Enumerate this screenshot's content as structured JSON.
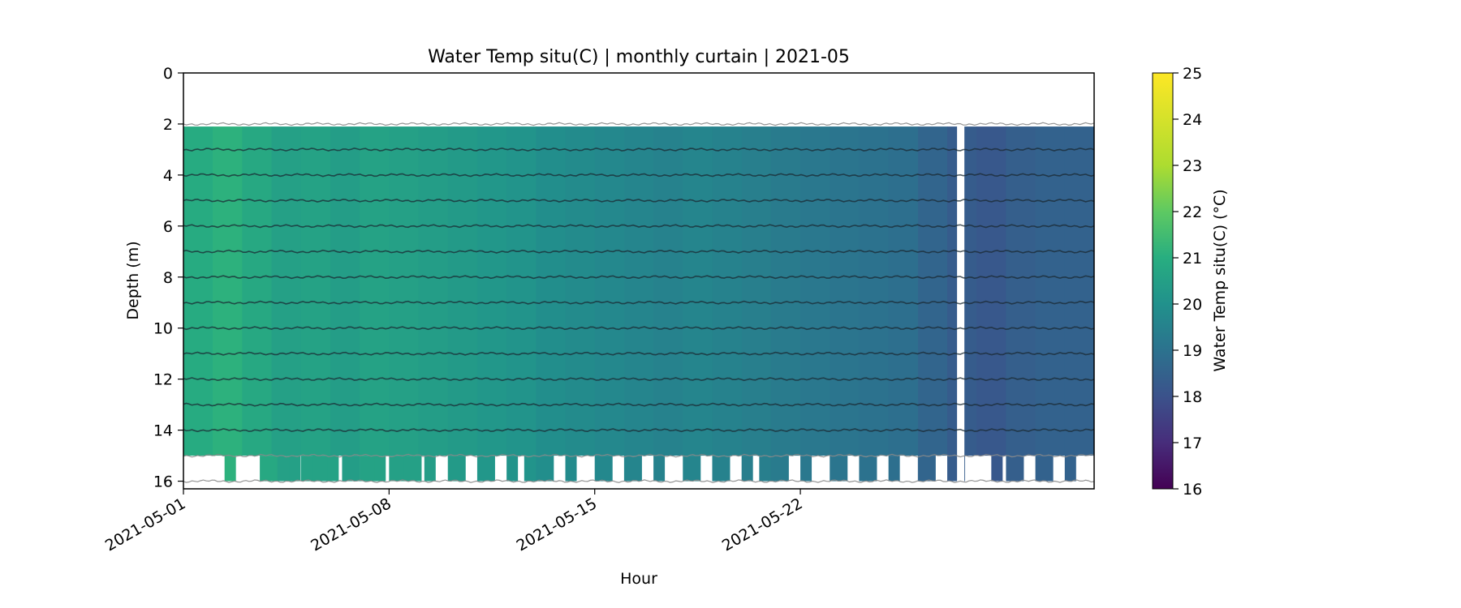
{
  "chart_data": {
    "type": "heatmap",
    "title": "Water Temp situ(C) | monthly curtain | 2021-05",
    "xlabel": "Hour",
    "ylabel": "Depth (m)",
    "x_range": [
      "2021-05-01",
      "2021-06-01"
    ],
    "x_ticks": [
      "2021-05-01",
      "2021-05-08",
      "2021-05-15",
      "2021-05-22"
    ],
    "y_range": [
      0,
      16.3
    ],
    "y_inverted": true,
    "y_ticks": [
      0,
      2,
      4,
      6,
      8,
      10,
      12,
      14,
      16
    ],
    "colormap": "viridis",
    "colorbar": {
      "label": "Water Temp situ(C) (°C)",
      "range": [
        16,
        25
      ],
      "ticks": [
        16,
        17,
        18,
        19,
        20,
        21,
        22,
        23,
        24,
        25
      ]
    },
    "main_band_depth": [
      2.1,
      15.0
    ],
    "sensor_depths": [
      2,
      3,
      4,
      5,
      6,
      7,
      8,
      9,
      10,
      11,
      12,
      13,
      14,
      15,
      16
    ],
    "data_gap": [
      "2021-05-27 08:00",
      "2021-05-27 14:00"
    ],
    "temperature_by_day": [
      {
        "date": "2021-05-01",
        "temp": 20.9
      },
      {
        "date": "2021-05-02",
        "temp": 21.1
      },
      {
        "date": "2021-05-03",
        "temp": 20.8
      },
      {
        "date": "2021-05-04",
        "temp": 20.5
      },
      {
        "date": "2021-05-05",
        "temp": 20.6
      },
      {
        "date": "2021-05-06",
        "temp": 20.4
      },
      {
        "date": "2021-05-07",
        "temp": 20.6
      },
      {
        "date": "2021-05-08",
        "temp": 20.5
      },
      {
        "date": "2021-05-09",
        "temp": 20.4
      },
      {
        "date": "2021-05-10",
        "temp": 20.3
      },
      {
        "date": "2021-05-11",
        "temp": 20.2
      },
      {
        "date": "2021-05-12",
        "temp": 20.1
      },
      {
        "date": "2021-05-13",
        "temp": 19.9
      },
      {
        "date": "2021-05-14",
        "temp": 19.8
      },
      {
        "date": "2021-05-15",
        "temp": 19.7
      },
      {
        "date": "2021-05-16",
        "temp": 19.6
      },
      {
        "date": "2021-05-17",
        "temp": 19.5
      },
      {
        "date": "2021-05-18",
        "temp": 19.6
      },
      {
        "date": "2021-05-19",
        "temp": 19.5
      },
      {
        "date": "2021-05-20",
        "temp": 19.4
      },
      {
        "date": "2021-05-21",
        "temp": 19.3
      },
      {
        "date": "2021-05-22",
        "temp": 19.2
      },
      {
        "date": "2021-05-23",
        "temp": 19.1
      },
      {
        "date": "2021-05-24",
        "temp": 19.0
      },
      {
        "date": "2021-05-25",
        "temp": 18.9
      },
      {
        "date": "2021-05-26",
        "temp": 18.6
      },
      {
        "date": "2021-05-27",
        "temp": 18.3
      },
      {
        "date": "2021-05-28",
        "temp": 18.2
      },
      {
        "date": "2021-05-29",
        "temp": 18.4
      },
      {
        "date": "2021-05-30",
        "temp": 18.5
      },
      {
        "date": "2021-05-31",
        "temp": 18.5
      },
      {
        "date": "2021-06-01",
        "temp": 18.5
      }
    ],
    "bottom_extension_days": [
      1.4,
      2.6,
      3.2,
      3.6,
      4.0,
      4.4,
      4.9,
      5.4,
      6.0,
      6.5,
      7.0,
      7.5,
      8.2,
      9.0,
      10.0,
      11.0,
      11.6,
      12.0,
      13.0,
      14.0,
      15.0,
      16.0,
      17.0,
      18.0,
      19.0,
      19.6,
      20.0,
      21.0,
      22.0,
      23.0,
      24.0,
      25.0,
      26.0,
      27.5,
      28.0,
      29.0,
      30.0,
      31.0
    ],
    "bottom_extension_depth": 16.0
  }
}
